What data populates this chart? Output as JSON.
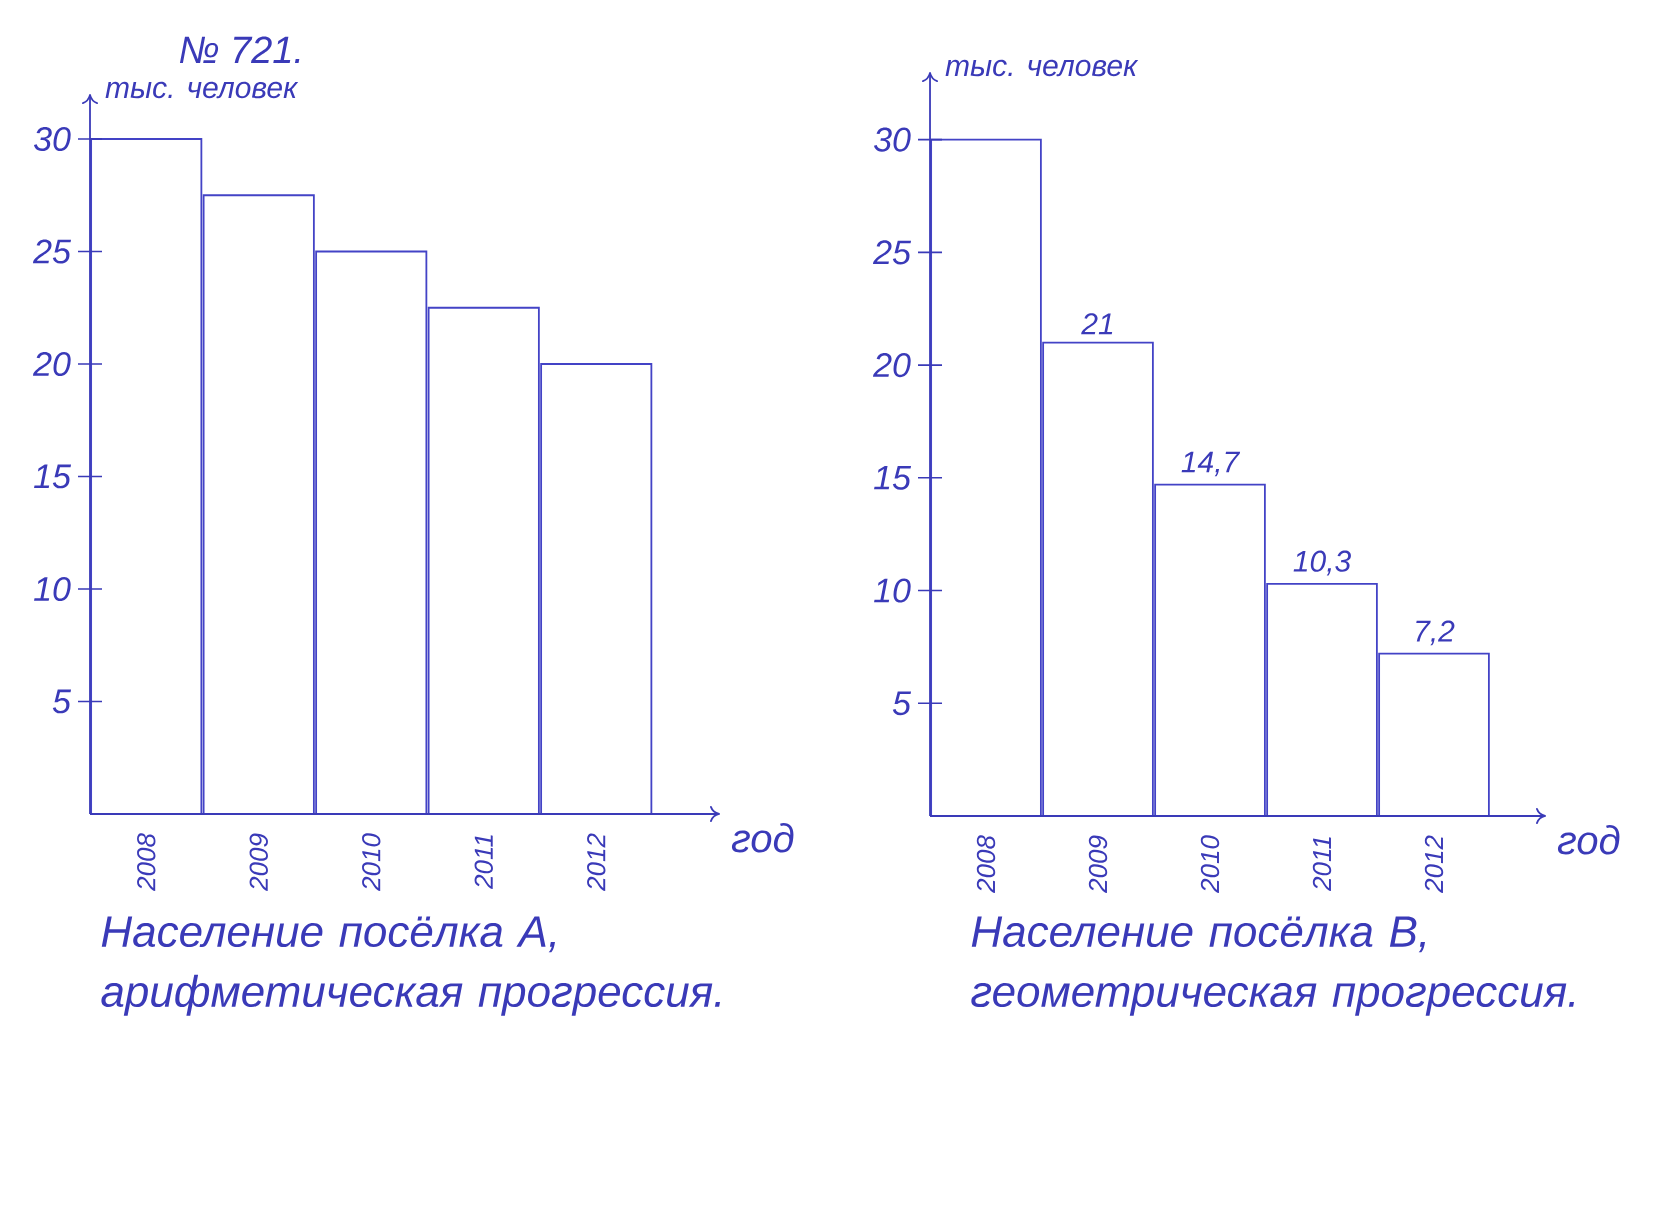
{
  "chart_data": [
    {
      "type": "bar",
      "title": "№ 721.",
      "xlabel": "год",
      "ylabel": "тыс. человек",
      "categories": [
        "2008",
        "2009",
        "2010",
        "2011",
        "2012"
      ],
      "values": [
        30,
        27.5,
        25,
        22.5,
        20
      ],
      "color": "#4343c6",
      "ylim": [
        0,
        32
      ],
      "yticks": [
        5,
        10,
        15,
        20,
        25,
        30
      ],
      "annotations": [
        "Население посёлка А, арифметическая прогрессия."
      ]
    },
    {
      "type": "bar",
      "xlabel": "год",
      "ylabel": "тыс. человек",
      "categories": [
        "2008",
        "2009",
        "2010",
        "2011",
        "2012"
      ],
      "values": [
        30,
        21,
        14.7,
        10.3,
        7.2
      ],
      "value_labels": [
        null,
        "21",
        "14,7",
        "10,3",
        "7,2"
      ],
      "color": "#4343c6",
      "ylim": [
        0,
        33
      ],
      "yticks": [
        5,
        10,
        15,
        20,
        25,
        30
      ],
      "annotations": [
        "Население посёлка В, геометрическая прогрессия."
      ]
    }
  ]
}
